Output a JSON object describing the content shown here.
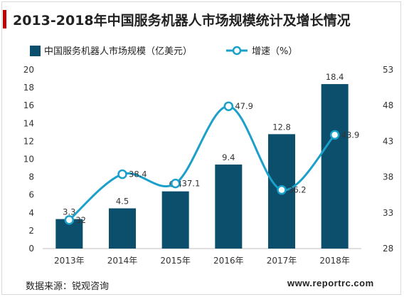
{
  "title": "2013-2018年中国服务机器人市场规模统计及增长情况",
  "source": "数据来源：锐观咨询",
  "watermark": "www.reportrc.com",
  "colors": {
    "bar": "#0b4f6c",
    "line": "#1aa0c9",
    "accent": "#c00000"
  },
  "chart_data": {
    "type": "bar",
    "categories": [
      "2013年",
      "2014年",
      "2015年",
      "2016年",
      "2017年",
      "2018年"
    ],
    "series": [
      {
        "name": "中国服务机器人市场规模（亿美元）",
        "type": "bar",
        "axis": "left",
        "values": [
          3.3,
          4.5,
          6.4,
          9.4,
          12.8,
          18.4
        ]
      },
      {
        "name": "增速（%）",
        "type": "line",
        "axis": "right",
        "values": [
          32,
          38.4,
          37.1,
          47.9,
          36.2,
          43.9
        ]
      }
    ],
    "y_left": {
      "ticks": [
        "0",
        "2",
        "4",
        "6",
        "8",
        "10",
        "12",
        "14",
        "16",
        "18",
        "20"
      ],
      "ylim": [
        0,
        20
      ]
    },
    "y_right": {
      "ticks": [
        "28",
        "33",
        "38",
        "43",
        "48",
        "53"
      ],
      "ylim": [
        28,
        53
      ]
    },
    "bar_labels": [
      "3.3",
      "4.5",
      "6.4",
      "9.4",
      "12.8",
      "18.4"
    ],
    "line_labels": [
      "32",
      "38.4",
      "37.1",
      "47.9",
      "36.2",
      "43.9"
    ],
    "legend_position": "top",
    "grid": false
  }
}
